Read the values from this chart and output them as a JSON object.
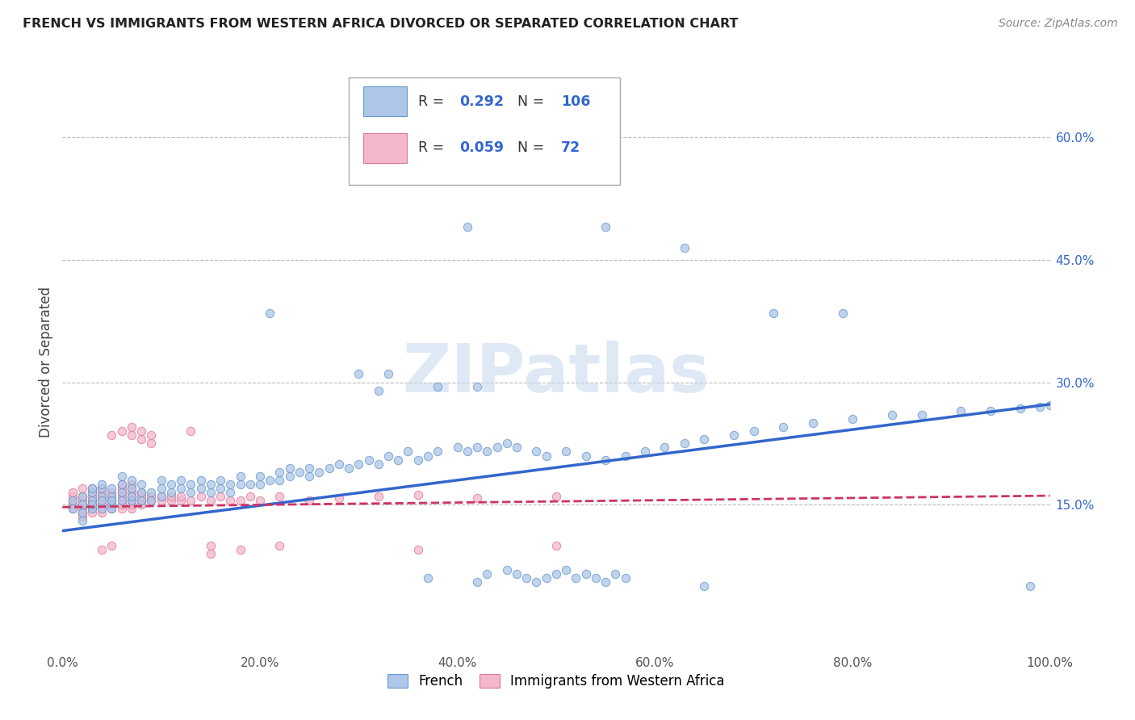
{
  "title": "FRENCH VS IMMIGRANTS FROM WESTERN AFRICA DIVORCED OR SEPARATED CORRELATION CHART",
  "source": "Source: ZipAtlas.com",
  "ylabel": "Divorced or Separated",
  "legend_label1": "French",
  "legend_label2": "Immigrants from Western Africa",
  "r1": 0.292,
  "n1": 106,
  "r2": 0.059,
  "n2": 72,
  "color1": "#aec6e8",
  "color2": "#f4b8cd",
  "edge_color1": "#6699cc",
  "edge_color2": "#dd7799",
  "trend_color1": "#3366cc",
  "trend_color2": "#cc3366",
  "watermark": "ZIPatlas",
  "watermark_color": "#c5d8f0",
  "xlim": [
    0.0,
    1.0
  ],
  "ylim": [
    -0.03,
    0.68
  ],
  "yticks": [
    0.15,
    0.3,
    0.45,
    0.6
  ],
  "xticks": [
    0.0,
    0.2,
    0.4,
    0.6,
    0.8,
    1.0
  ],
  "xtick_labels": [
    "0.0%",
    "20.0%",
    "40.0%",
    "60.0%",
    "80.0%",
    "100.0%"
  ],
  "ytick_labels": [
    "15.0%",
    "30.0%",
    "45.0%",
    "60.0%"
  ],
  "trend1_intercept": 0.118,
  "trend1_slope": 0.155,
  "trend2_intercept": 0.147,
  "trend2_slope": 0.014,
  "french_x": [
    0.01,
    0.01,
    0.02,
    0.02,
    0.02,
    0.02,
    0.03,
    0.03,
    0.03,
    0.03,
    0.03,
    0.04,
    0.04,
    0.04,
    0.04,
    0.04,
    0.05,
    0.05,
    0.05,
    0.05,
    0.05,
    0.06,
    0.06,
    0.06,
    0.06,
    0.07,
    0.07,
    0.07,
    0.07,
    0.08,
    0.08,
    0.08,
    0.09,
    0.09,
    0.1,
    0.1,
    0.1,
    0.11,
    0.11,
    0.12,
    0.12,
    0.13,
    0.13,
    0.14,
    0.14,
    0.15,
    0.15,
    0.16,
    0.16,
    0.17,
    0.17,
    0.18,
    0.18,
    0.19,
    0.2,
    0.2,
    0.21,
    0.22,
    0.22,
    0.23,
    0.23,
    0.24,
    0.25,
    0.25,
    0.26,
    0.27,
    0.28,
    0.29,
    0.3,
    0.31,
    0.32,
    0.33,
    0.34,
    0.35,
    0.36,
    0.37,
    0.38,
    0.4,
    0.41,
    0.42,
    0.43,
    0.44,
    0.45,
    0.46,
    0.48,
    0.49,
    0.51,
    0.53,
    0.55,
    0.57,
    0.59,
    0.61,
    0.63,
    0.65,
    0.68,
    0.7,
    0.73,
    0.76,
    0.8,
    0.84,
    0.87,
    0.91,
    0.94,
    0.97,
    0.99,
    1.0
  ],
  "french_y": [
    0.155,
    0.145,
    0.15,
    0.16,
    0.14,
    0.13,
    0.155,
    0.145,
    0.165,
    0.17,
    0.15,
    0.145,
    0.16,
    0.155,
    0.17,
    0.175,
    0.15,
    0.16,
    0.17,
    0.155,
    0.145,
    0.155,
    0.165,
    0.175,
    0.185,
    0.155,
    0.16,
    0.17,
    0.18,
    0.155,
    0.165,
    0.175,
    0.155,
    0.165,
    0.16,
    0.17,
    0.18,
    0.165,
    0.175,
    0.17,
    0.18,
    0.165,
    0.175,
    0.17,
    0.18,
    0.165,
    0.175,
    0.17,
    0.18,
    0.165,
    0.175,
    0.175,
    0.185,
    0.175,
    0.175,
    0.185,
    0.18,
    0.18,
    0.19,
    0.185,
    0.195,
    0.19,
    0.185,
    0.195,
    0.19,
    0.195,
    0.2,
    0.195,
    0.2,
    0.205,
    0.2,
    0.21,
    0.205,
    0.215,
    0.205,
    0.21,
    0.215,
    0.22,
    0.215,
    0.22,
    0.215,
    0.22,
    0.225,
    0.22,
    0.215,
    0.21,
    0.215,
    0.21,
    0.205,
    0.21,
    0.215,
    0.22,
    0.225,
    0.23,
    0.235,
    0.24,
    0.245,
    0.25,
    0.255,
    0.26,
    0.26,
    0.265,
    0.265,
    0.268,
    0.27,
    0.272
  ],
  "french_outliers_x": [
    0.35,
    0.41,
    0.55,
    0.63,
    0.72,
    0.79
  ],
  "french_outliers_y": [
    0.56,
    0.49,
    0.49,
    0.465,
    0.385,
    0.385
  ],
  "french_mid_high_x": [
    0.21,
    0.3,
    0.32,
    0.33,
    0.38,
    0.42
  ],
  "french_mid_high_y": [
    0.385,
    0.31,
    0.29,
    0.31,
    0.295,
    0.295
  ],
  "french_low_x": [
    0.37,
    0.42,
    0.43,
    0.45,
    0.46,
    0.47,
    0.48,
    0.49,
    0.5,
    0.51,
    0.52,
    0.53,
    0.54,
    0.55,
    0.56,
    0.57,
    0.65,
    0.98
  ],
  "french_low_y": [
    0.06,
    0.055,
    0.065,
    0.07,
    0.065,
    0.06,
    0.055,
    0.06,
    0.065,
    0.07,
    0.06,
    0.065,
    0.06,
    0.055,
    0.065,
    0.06,
    0.05,
    0.05
  ],
  "immig_x": [
    0.01,
    0.01,
    0.01,
    0.01,
    0.01,
    0.02,
    0.02,
    0.02,
    0.02,
    0.02,
    0.02,
    0.02,
    0.03,
    0.03,
    0.03,
    0.03,
    0.03,
    0.03,
    0.03,
    0.04,
    0.04,
    0.04,
    0.04,
    0.04,
    0.04,
    0.04,
    0.05,
    0.05,
    0.05,
    0.05,
    0.05,
    0.06,
    0.06,
    0.06,
    0.06,
    0.06,
    0.06,
    0.06,
    0.07,
    0.07,
    0.07,
    0.07,
    0.07,
    0.07,
    0.07,
    0.08,
    0.08,
    0.08,
    0.08,
    0.09,
    0.09,
    0.1,
    0.1,
    0.11,
    0.11,
    0.12,
    0.12,
    0.13,
    0.14,
    0.15,
    0.16,
    0.17,
    0.18,
    0.19,
    0.2,
    0.22,
    0.25,
    0.28,
    0.32,
    0.36,
    0.42,
    0.5
  ],
  "immig_y": [
    0.145,
    0.15,
    0.155,
    0.16,
    0.165,
    0.145,
    0.15,
    0.155,
    0.16,
    0.14,
    0.135,
    0.17,
    0.145,
    0.15,
    0.155,
    0.16,
    0.165,
    0.17,
    0.14,
    0.145,
    0.15,
    0.155,
    0.16,
    0.165,
    0.17,
    0.14,
    0.145,
    0.15,
    0.155,
    0.16,
    0.165,
    0.145,
    0.15,
    0.155,
    0.16,
    0.165,
    0.17,
    0.175,
    0.145,
    0.15,
    0.155,
    0.16,
    0.165,
    0.17,
    0.175,
    0.15,
    0.155,
    0.16,
    0.165,
    0.155,
    0.16,
    0.155,
    0.16,
    0.155,
    0.16,
    0.155,
    0.16,
    0.155,
    0.16,
    0.155,
    0.16,
    0.155,
    0.155,
    0.16,
    0.155,
    0.16,
    0.155,
    0.158,
    0.16,
    0.162,
    0.158,
    0.16
  ],
  "immig_outliers_x": [
    0.05,
    0.06,
    0.07,
    0.07,
    0.08,
    0.08,
    0.09,
    0.09,
    0.13,
    0.15
  ],
  "immig_outliers_y": [
    0.235,
    0.24,
    0.235,
    0.245,
    0.23,
    0.24,
    0.235,
    0.225,
    0.24,
    0.1
  ],
  "immig_low_x": [
    0.04,
    0.05,
    0.15,
    0.18,
    0.22,
    0.36,
    0.5
  ],
  "immig_low_y": [
    0.095,
    0.1,
    0.09,
    0.095,
    0.1,
    0.095,
    0.1
  ]
}
